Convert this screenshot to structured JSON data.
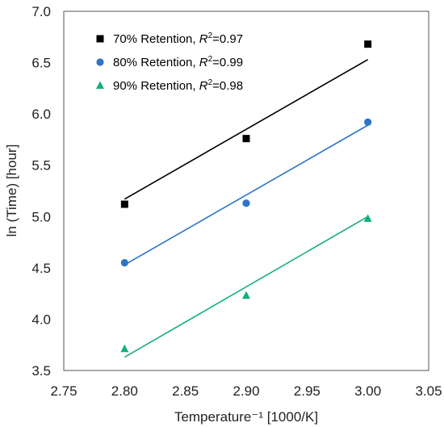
{
  "chart_data": {
    "type": "scatter",
    "xlabel": "Temperature⁻¹ [1000/K]",
    "ylabel": "ln (Time) [hour]",
    "xlim": [
      2.75,
      3.05
    ],
    "ylim": [
      3.5,
      7.0
    ],
    "xticks": [
      "2.75",
      "2.80",
      "2.85",
      "2.90",
      "2.95",
      "3.00",
      "3.05"
    ],
    "yticks": [
      "3.5",
      "4.0",
      "4.5",
      "5.0",
      "5.5",
      "6.0",
      "6.5",
      "7.0"
    ],
    "grid": false,
    "legend_position": "top-left",
    "series": [
      {
        "name": "70% Retention, R²=0.97",
        "label_prefix": "70% Retention, ",
        "r2_value": "=0.97",
        "marker": "square",
        "color": "#000000",
        "x": [
          2.8,
          2.9,
          3.0
        ],
        "y": [
          5.12,
          5.76,
          6.68
        ],
        "fit": [
          [
            2.8,
            5.17
          ],
          [
            3.0,
            6.53
          ]
        ]
      },
      {
        "name": "80% Retention, R²=0.99",
        "label_prefix": "80% Retention, ",
        "r2_value": "=0.99",
        "marker": "circle",
        "color": "#2e75c6",
        "x": [
          2.8,
          2.9,
          3.0
        ],
        "y": [
          4.55,
          5.13,
          5.92
        ],
        "fit": [
          [
            2.8,
            4.53
          ],
          [
            3.0,
            5.89
          ]
        ]
      },
      {
        "name": "90% Retention, R²=0.98",
        "label_prefix": "90% Retention, ",
        "r2_value": "=0.98",
        "marker": "triangle",
        "color": "#12b07a",
        "x": [
          2.8,
          2.9,
          3.0
        ],
        "y": [
          3.71,
          4.23,
          4.98
        ],
        "fit": [
          [
            2.8,
            3.63
          ],
          [
            3.0,
            5.0
          ]
        ]
      }
    ]
  }
}
